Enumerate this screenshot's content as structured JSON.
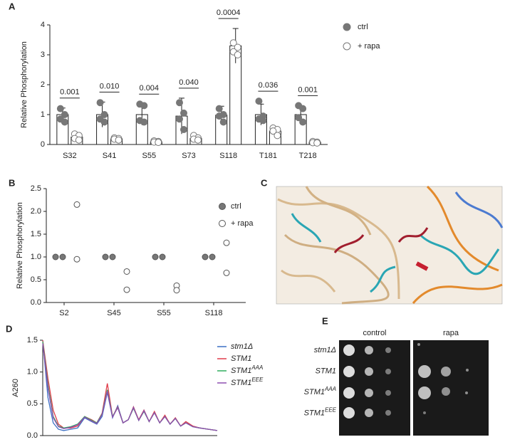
{
  "panel_labels": [
    "A",
    "B",
    "C",
    "D",
    "E"
  ],
  "chart_data": [
    {
      "type": "bar",
      "ylabel": "Relative Phosphorylation",
      "categories": [
        "S32",
        "S41",
        "S55",
        "S73",
        "S118",
        "T181",
        "T218"
      ],
      "ylim": [
        0,
        4
      ],
      "yticks": [
        0,
        1,
        2,
        3,
        4
      ],
      "legend": "top-right",
      "series": [
        {
          "name": "ctrl",
          "color": "#777777",
          "values": [
            1.0,
            1.0,
            1.0,
            0.95,
            0.98,
            1.0,
            1.0
          ],
          "errors": [
            0.22,
            0.42,
            0.35,
            0.6,
            0.3,
            0.35,
            0.3
          ],
          "points": [
            [
              1.2,
              1.0,
              0.85,
              0.75
            ],
            [
              1.4,
              1.0,
              0.85,
              0.75
            ],
            [
              1.35,
              1.3,
              0.8,
              0.75
            ],
            [
              1.4,
              1.05,
              0.85,
              0.5
            ],
            [
              1.2,
              1.0,
              0.95,
              0.75
            ],
            [
              1.45,
              0.95,
              0.85,
              0.8
            ],
            [
              1.3,
              1.2,
              0.9,
              0.75
            ]
          ]
        },
        {
          "name": "+ rapa",
          "color": "#ffffff",
          "values": [
            0.25,
            0.19,
            0.09,
            0.2,
            3.3,
            0.45,
            0.08
          ],
          "errors": [
            0.08,
            0.04,
            0.03,
            0.07,
            0.58,
            0.1,
            0.02
          ],
          "points": [
            [
              0.35,
              0.3,
              0.2,
              0.15
            ],
            [
              0.22,
              0.2,
              0.18,
              0.15
            ],
            [
              0.12,
              0.1,
              0.08,
              0.07
            ],
            [
              0.3,
              0.22,
              0.18,
              0.15
            ],
            [
              3.4,
              3.25,
              3.1,
              3.0
            ],
            [
              0.55,
              0.5,
              0.45,
              0.3
            ],
            [
              0.1,
              0.08,
              0.06,
              0.05
            ]
          ]
        }
      ],
      "annotations": [
        "0.001",
        "0.010",
        "0.004",
        "0.040",
        "0.0004",
        "0.036",
        "0.001"
      ]
    },
    {
      "type": "scatter",
      "ylabel": "Relative Phosphorylation",
      "categories": [
        "S2",
        "S45",
        "S55",
        "S118"
      ],
      "ylim": [
        0,
        2.5
      ],
      "yticks": [
        {
          "value": 0,
          "label": "0.0"
        },
        0.5,
        {
          "value": 1,
          "label": "1.0"
        },
        1.5,
        {
          "value": 2,
          "label": "2.0"
        },
        2.5
      ],
      "legend": "right",
      "series": [
        {
          "name": "ctrl",
          "color": "#777777",
          "values": [
            [
              1,
              1
            ],
            [
              1,
              1
            ],
            [
              1,
              1
            ],
            [
              1,
              1
            ]
          ]
        },
        {
          "name": "+ rapa",
          "color": "#ffffff",
          "values": [
            [
              2.15,
              0.95
            ],
            [
              0.68,
              0.28
            ],
            [
              0.37,
              0.27
            ],
            [
              1.31,
              0.65
            ]
          ]
        }
      ]
    },
    {
      "type": "line",
      "ylabel": "A260",
      "x": [
        0,
        3,
        6,
        9,
        12,
        16,
        20,
        24,
        28,
        31,
        34,
        37,
        40,
        43,
        46,
        49,
        52,
        55,
        58,
        61,
        64,
        67,
        70,
        73,
        76,
        79,
        82,
        86,
        90,
        95,
        100
      ],
      "xlim": [
        0,
        100
      ],
      "ylim": [
        0,
        1.5
      ],
      "yticks": [
        {
          "value": 0,
          "label": "0.0"
        },
        0.5,
        {
          "value": 1,
          "label": "1.0"
        },
        1.5
      ],
      "legend": "right",
      "series": [
        {
          "name": "stm1Δ",
          "color": "#3b6fc4",
          "values": [
            1.5,
            0.6,
            0.2,
            0.1,
            0.08,
            0.1,
            0.12,
            0.28,
            0.22,
            0.18,
            0.3,
            0.68,
            0.28,
            0.47,
            0.2,
            0.25,
            0.45,
            0.24,
            0.4,
            0.22,
            0.36,
            0.2,
            0.3,
            0.18,
            0.27,
            0.15,
            0.2,
            0.14,
            0.12,
            0.1,
            0.08
          ]
        },
        {
          "name": "STM1",
          "color": "#e03c4a",
          "values": [
            1.5,
            0.9,
            0.4,
            0.18,
            0.12,
            0.12,
            0.15,
            0.3,
            0.25,
            0.2,
            0.35,
            0.82,
            0.3,
            0.45,
            0.2,
            0.25,
            0.45,
            0.25,
            0.4,
            0.22,
            0.38,
            0.2,
            0.32,
            0.18,
            0.28,
            0.15,
            0.22,
            0.15,
            0.12,
            0.1,
            0.08
          ]
        },
        {
          "name": "STM1",
          "superscript": "AAA",
          "color": "#2fae5f",
          "values": [
            1.48,
            0.8,
            0.3,
            0.15,
            0.12,
            0.14,
            0.18,
            0.3,
            0.24,
            0.2,
            0.34,
            0.72,
            0.3,
            0.44,
            0.2,
            0.25,
            0.43,
            0.24,
            0.38,
            0.22,
            0.36,
            0.2,
            0.3,
            0.18,
            0.27,
            0.15,
            0.2,
            0.14,
            0.12,
            0.1,
            0.08
          ]
        },
        {
          "name": "STM1",
          "superscript": "EEE",
          "color": "#8e4fb0",
          "values": [
            1.45,
            0.75,
            0.28,
            0.14,
            0.11,
            0.13,
            0.17,
            0.29,
            0.23,
            0.19,
            0.33,
            0.7,
            0.29,
            0.44,
            0.2,
            0.25,
            0.44,
            0.24,
            0.39,
            0.22,
            0.36,
            0.2,
            0.3,
            0.18,
            0.27,
            0.15,
            0.2,
            0.14,
            0.12,
            0.1,
            0.08
          ]
        }
      ]
    }
  ],
  "spot_assay": {
    "columns": [
      "control",
      "rapa"
    ],
    "strains": [
      {
        "name": "stm1Δ"
      },
      {
        "name": "STM1"
      },
      {
        "name": "STM1",
        "superscript": "AAA"
      },
      {
        "name": "STM1",
        "superscript": "EEE"
      }
    ]
  }
}
